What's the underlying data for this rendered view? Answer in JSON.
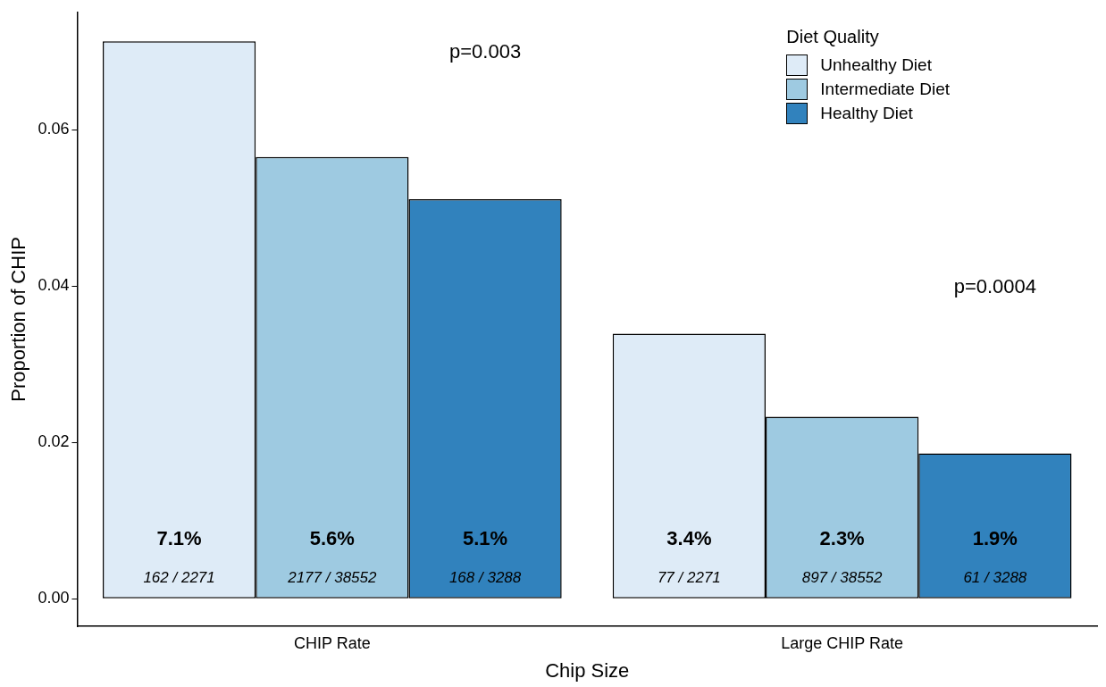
{
  "chart_data": {
    "type": "bar",
    "xlabel": "Chip Size",
    "ylabel": "Proportion of CHIP",
    "legend_title": "Diet Quality",
    "legend": "top right",
    "grid": false,
    "categories": [
      "CHIP Rate",
      "Large CHIP Rate"
    ],
    "series": [
      {
        "name": "Unhealthy Diet",
        "color": "#deebf7",
        "values": [
          0.0713,
          0.0339
        ],
        "value_labels": [
          "7.1%\n162 / 2271",
          "3.4%\n77 / 2271"
        ]
      },
      {
        "name": "Intermediate Diet",
        "color": "#9ecae1",
        "values": [
          0.0565,
          0.0233
        ],
        "value_labels": [
          "5.6%\n2177 / 38552",
          "2.3%\n897 / 38552"
        ]
      },
      {
        "name": "Healthy Diet",
        "color": "#3182bd",
        "values": [
          0.0511,
          0.0186
        ],
        "value_labels": [
          "5.1%\n168 / 3288",
          "1.9%\n61 / 3288"
        ]
      }
    ],
    "ylim": [
      -0.0035,
      0.075
    ],
    "yticks": [
      {
        "value": 0,
        "label": "0.00"
      },
      {
        "value": 0.02,
        "label": "0.02"
      },
      {
        "value": 0.04,
        "label": "0.04"
      },
      {
        "value": 0.06,
        "label": "0.06"
      }
    ],
    "annotations": [
      "p=0.003",
      "p=0.0004"
    ]
  }
}
